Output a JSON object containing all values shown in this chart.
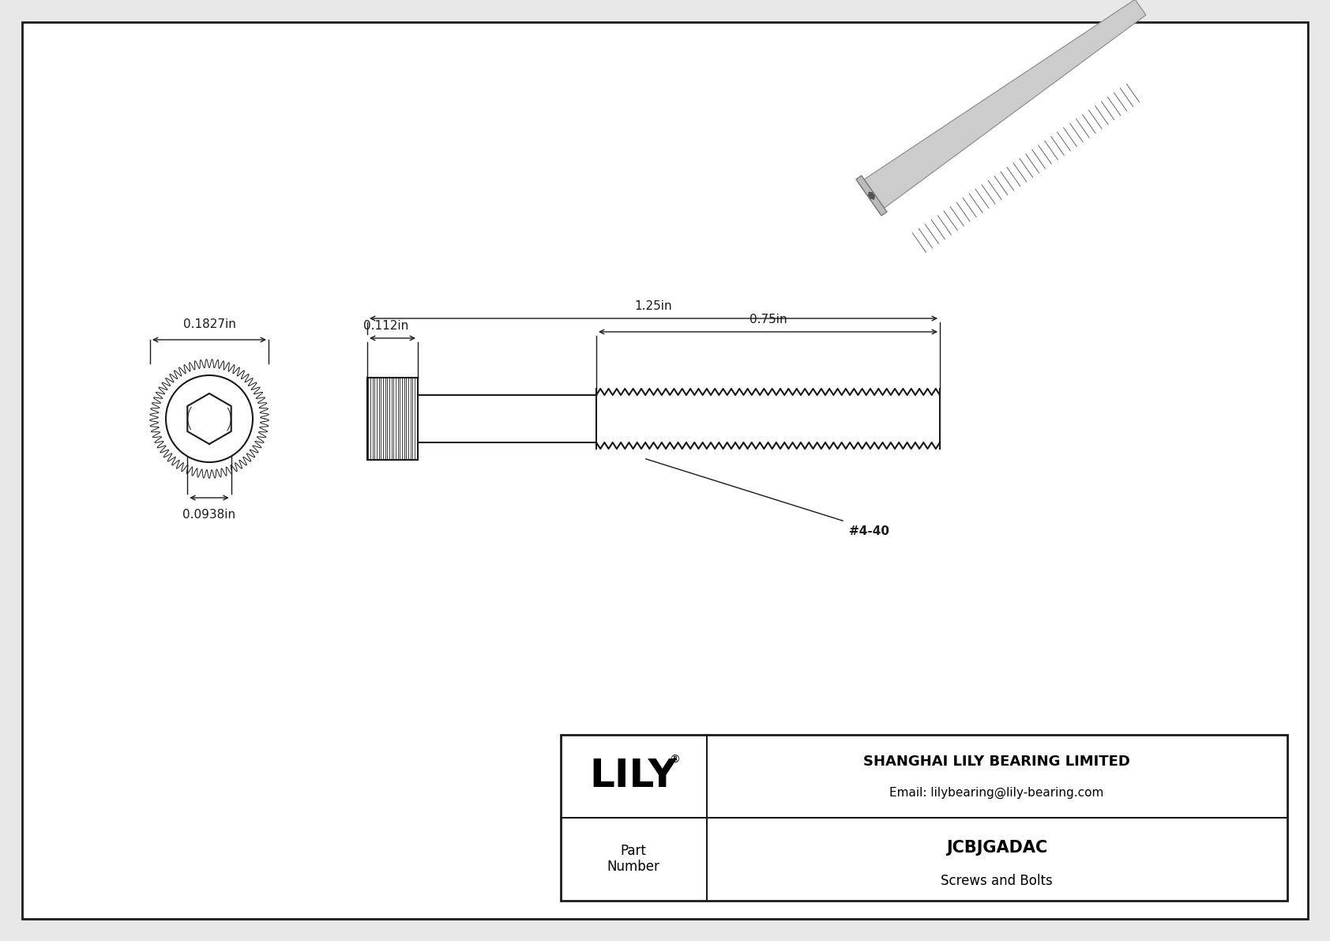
{
  "background_color": "#e8e8e8",
  "drawing_bg": "#ffffff",
  "border_color": "#000000",
  "line_color": "#1a1a1a",
  "title": "JCBJGADAC",
  "subtitle": "Screws and Bolts",
  "company_name": "SHANGHAI LILY BEARING LIMITED",
  "company_email": "Email: lilybearing@lily-bearing.com",
  "logo_text": "LILY",
  "logo_reg": "®",
  "part_label": "Part\nNumber",
  "dim_total_length": "1.25in",
  "dim_thread_length": "0.75in",
  "dim_head_length": "0.112in",
  "dim_head_diameter": "0.1827in",
  "dim_hex_size": "0.0938in",
  "thread_label": "#4-40"
}
